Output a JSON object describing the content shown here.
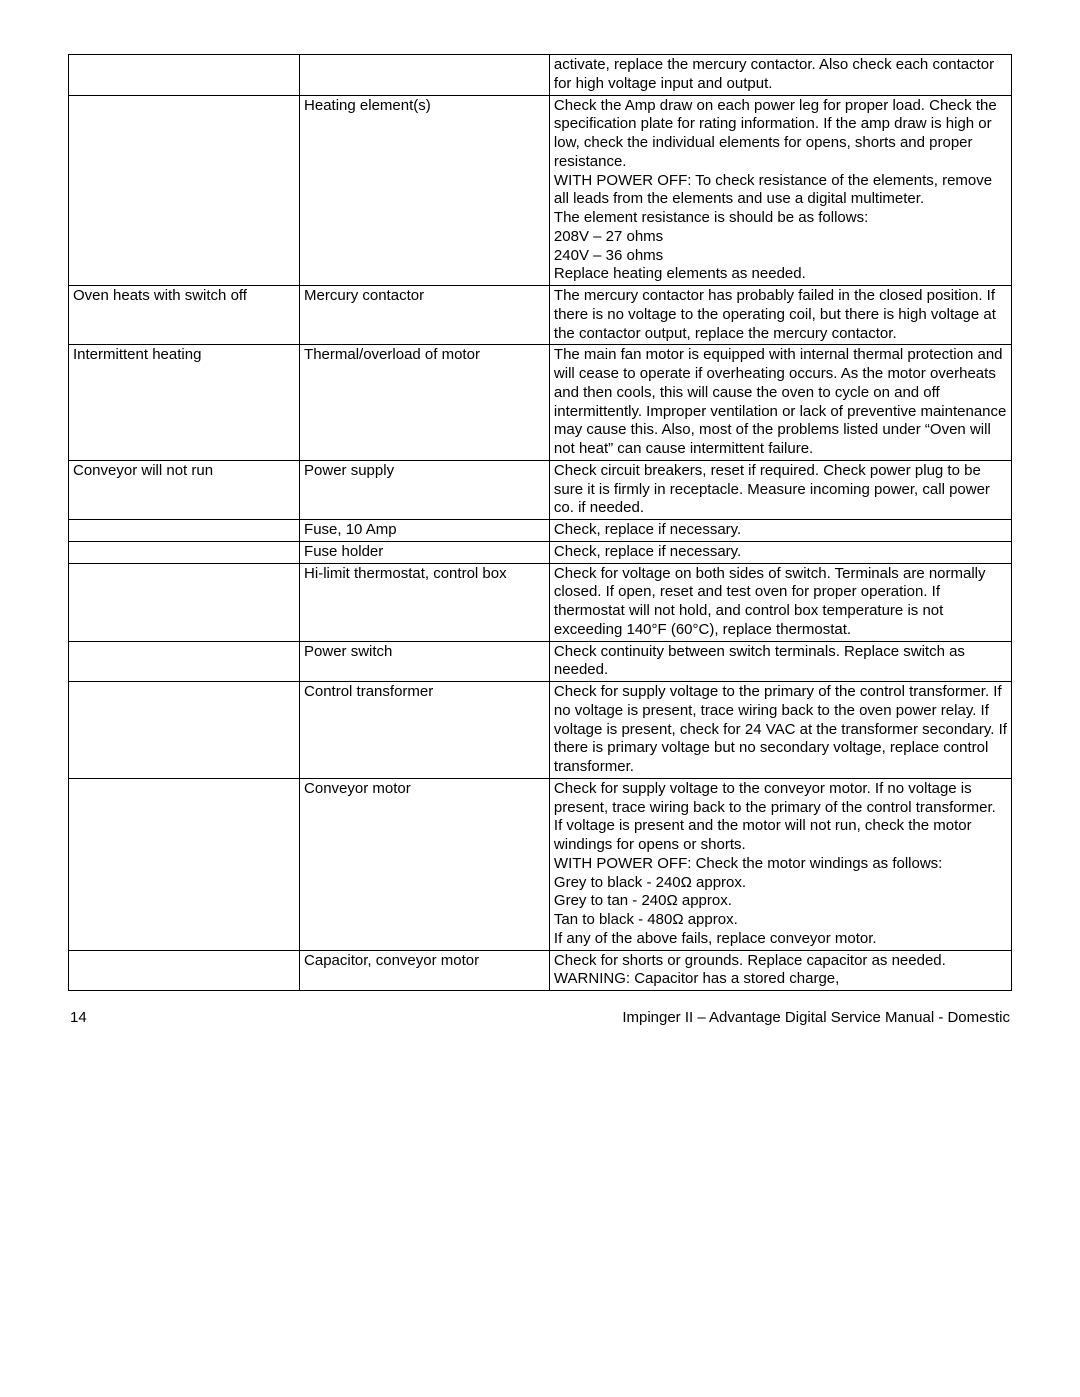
{
  "table": {
    "col_widths_pct": [
      24.5,
      26.5,
      49.0
    ],
    "border_color": "#000000",
    "font_size_pt": 11,
    "rows": [
      {
        "c1": "",
        "c2": "",
        "c3": "activate, replace  the mercury contactor. Also check each contactor for high voltage input and output."
      },
      {
        "c1": "",
        "c2": "Heating element(s)",
        "c3": "Check the Amp draw on each power leg for proper load. Check the specification plate for rating information. If the amp draw is high or low, check the individual elements for opens, shorts and proper resistance.\nWITH POWER OFF: To check resistance of the elements, remove all leads from the elements and use a digital multimeter.\nThe element resistance is should be as follows:\n208V – 27 ohms\n240V – 36 ohms\nReplace heating elements as needed."
      },
      {
        "c1": "Oven heats with switch off",
        "c2": "Mercury contactor",
        "c3": "The mercury contactor has probably failed in the closed position. If there is no voltage to the operating coil, but there is high voltage at the contactor output, replace the mercury contactor."
      },
      {
        "c1": "Intermittent heating",
        "c2": "Thermal/overload of motor",
        "c3": "The main fan motor is equipped with internal thermal protection and will cease to operate if overheating occurs. As the motor overheats and then cools, this will cause the oven to cycle on and off intermittently. Improper ventilation or lack of preventive maintenance may cause this. Also, most of the problems listed under “Oven will not heat” can cause intermittent failure."
      },
      {
        "c1": "Conveyor will not run",
        "c2": "Power supply",
        "c3": "Check circuit breakers, reset if required. Check power plug to be sure it is firmly in receptacle. Measure incoming power, call power co. if needed."
      },
      {
        "c1": "",
        "c2": "Fuse, 10 Amp",
        "c3": "Check, replace if necessary."
      },
      {
        "c1": "",
        "c2": "Fuse holder",
        "c3": "Check, replace if necessary."
      },
      {
        "c1": "",
        "c2": "Hi-limit thermostat, control box",
        "c3": "Check for voltage on both sides of switch. Terminals are normally closed. If open, reset and test oven for proper operation. If thermostat will not hold, and control box temperature is not exceeding 140°F (60°C), replace thermostat."
      },
      {
        "c1": "",
        "c2": "Power switch",
        "c3": "Check continuity between switch terminals. Replace switch as needed."
      },
      {
        "c1": "",
        "c2": "Control transformer",
        "c3": "Check for supply voltage to the primary of the control transformer. If no voltage is present, trace wiring back to the oven power relay. If voltage is present, check for 24 VAC at the transformer secondary. If there is primary voltage but no secondary voltage, replace control transformer."
      },
      {
        "c1": "",
        "c2": "Conveyor motor",
        "c3": "Check for supply voltage to the conveyor motor. If no voltage is present, trace wiring back to the primary of the control transformer. If voltage is present and the motor will not run, check the motor windings for opens or shorts.\nWITH POWER OFF: Check the motor windings as follows:\nGrey to black -  240Ω approx.\nGrey to tan   -   240Ω approx.\n Tan to black -  480Ω approx.\nIf any of the above fails, replace conveyor motor."
      },
      {
        "c1": "",
        "c2": "Capacitor, conveyor motor",
        "c3": "Check for shorts or grounds. Replace capacitor as needed.\nWARNING: Capacitor has a stored charge,"
      }
    ]
  },
  "footer": {
    "page_number": "14",
    "title": "Impinger II – Advantage Digital Service Manual - Domestic"
  }
}
